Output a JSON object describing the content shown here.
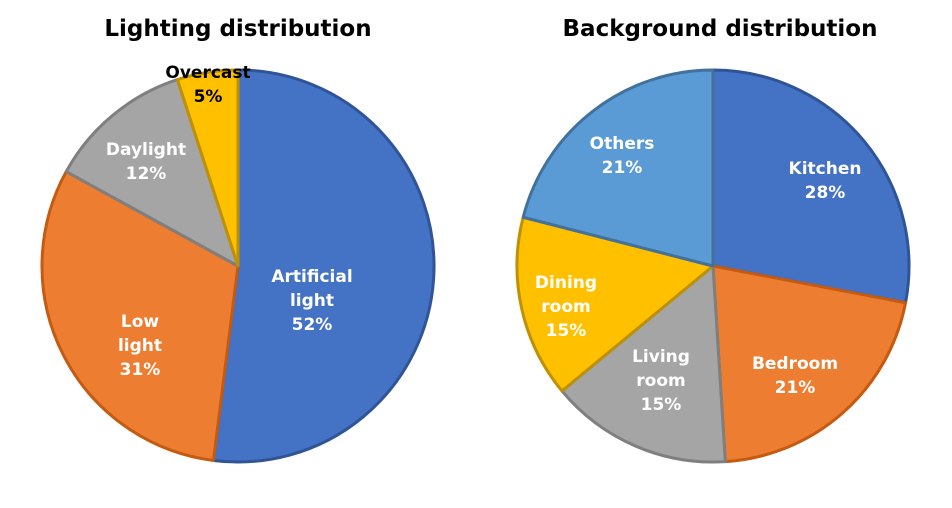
{
  "chart_data": [
    {
      "type": "pie",
      "title": "Lighting distribution",
      "slices": [
        {
          "label_lines": [
            "Artificial",
            "light"
          ],
          "value": 52,
          "value_text": "52%",
          "color": "#4472C4",
          "edge": "#2F5597",
          "label_color": "#FFFFFF"
        },
        {
          "label_lines": [
            "Low",
            "light"
          ],
          "value": 31,
          "value_text": "31%",
          "color": "#ED7D31",
          "edge": "#C55A11",
          "label_color": "#FFFFFF"
        },
        {
          "label_lines": [
            "Daylight"
          ],
          "value": 12,
          "value_text": "12%",
          "color": "#A5A5A5",
          "edge": "#7F7F7F",
          "label_color": "#FFFFFF"
        },
        {
          "label_lines": [
            "Overcast"
          ],
          "value": 5,
          "value_text": "5%",
          "color": "#FFC000",
          "edge": "#BF9000",
          "label_color": "#000000"
        }
      ]
    },
    {
      "type": "pie",
      "title": "Background distribution",
      "slices": [
        {
          "label_lines": [
            "Kitchen"
          ],
          "value": 28,
          "value_text": "28%",
          "color": "#4472C4",
          "edge": "#2F5597",
          "label_color": "#FFFFFF"
        },
        {
          "label_lines": [
            "Bedroom"
          ],
          "value": 21,
          "value_text": "21%",
          "color": "#ED7D31",
          "edge": "#C55A11",
          "label_color": "#FFFFFF"
        },
        {
          "label_lines": [
            "Living",
            "room"
          ],
          "value": 15,
          "value_text": "15%",
          "color": "#A5A5A5",
          "edge": "#7F7F7F",
          "label_color": "#FFFFFF"
        },
        {
          "label_lines": [
            "Dining",
            "room"
          ],
          "value": 15,
          "value_text": "15%",
          "color": "#FFC000",
          "edge": "#BF9000",
          "label_color": "#FFFFFF"
        },
        {
          "label_lines": [
            "Others"
          ],
          "value": 21,
          "value_text": "21%",
          "color": "#5B9BD5",
          "edge": "#41719C",
          "label_color": "#FFFFFF"
        }
      ]
    }
  ]
}
